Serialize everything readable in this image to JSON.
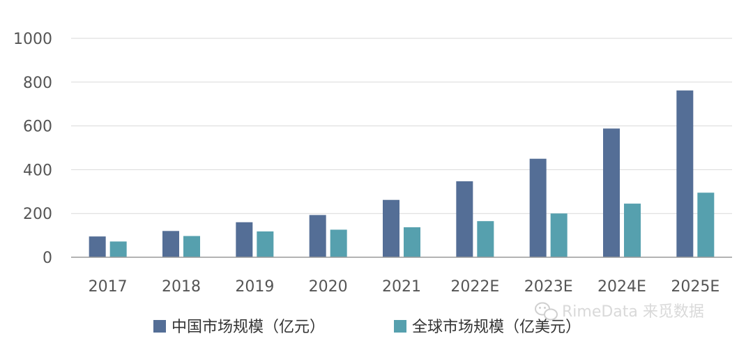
{
  "chart_data": {
    "type": "bar",
    "categories": [
      "2017",
      "2018",
      "2019",
      "2020",
      "2021",
      "2022E",
      "2023E",
      "2024E",
      "2025E"
    ],
    "series": [
      {
        "name": "中国市场规模（亿元）",
        "color": "#546e96",
        "values": [
          95,
          120,
          160,
          193,
          262,
          347,
          450,
          588,
          762
        ]
      },
      {
        "name": "全球市场规模（亿美元）",
        "color": "#56a0ae",
        "values": [
          72,
          97,
          118,
          126,
          137,
          165,
          200,
          245,
          295
        ]
      }
    ],
    "ylim": [
      0,
      1000
    ],
    "yticks": [
      0,
      200,
      400,
      600,
      800,
      1000
    ],
    "grid": true,
    "legend_position": "bottom"
  },
  "watermark": {
    "text": "RimeData 来觅数据",
    "icon": "wechat-icon"
  }
}
